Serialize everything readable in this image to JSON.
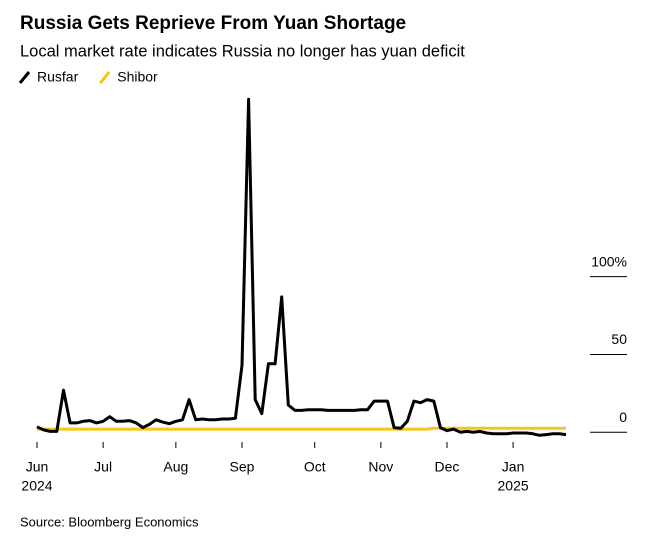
{
  "chart_data": {
    "type": "line",
    "title": "Russia Gets Reprieve From Yuan Shortage",
    "subtitle": "Local market rate indicates Russia no longer has yuan deficit",
    "source": "Source: Bloomberg Economics",
    "categories": [
      "Jun",
      null,
      null,
      null,
      null,
      null,
      null,
      null,
      null,
      null,
      "Jul",
      null,
      null,
      null,
      null,
      null,
      null,
      null,
      null,
      null,
      null,
      "Aug",
      null,
      null,
      null,
      null,
      null,
      null,
      null,
      null,
      null,
      "Sep",
      null,
      null,
      null,
      null,
      null,
      null,
      null,
      null,
      null,
      null,
      "Oct",
      null,
      null,
      null,
      null,
      null,
      null,
      null,
      null,
      null,
      "Nov",
      null,
      null,
      null,
      null,
      null,
      null,
      null,
      null,
      null,
      "Dec",
      null,
      null,
      null,
      null,
      null,
      null,
      null,
      null,
      null,
      "Jan",
      null,
      null,
      null,
      null,
      null,
      null,
      null,
      null
    ],
    "year_labels": [
      "2024",
      null,
      null,
      null,
      null,
      null,
      null,
      null,
      null,
      null,
      null,
      null,
      null,
      null,
      null,
      null,
      null,
      null,
      null,
      null,
      null,
      null,
      null,
      null,
      null,
      null,
      null,
      null,
      null,
      null,
      null,
      null,
      null,
      null,
      null,
      null,
      null,
      null,
      null,
      null,
      null,
      null,
      null,
      null,
      null,
      null,
      null,
      null,
      null,
      null,
      null,
      null,
      null,
      null,
      null,
      null,
      null,
      null,
      null,
      null,
      null,
      null,
      null,
      null,
      null,
      null,
      null,
      null,
      null,
      null,
      null,
      null,
      "2025",
      null,
      null,
      null,
      null,
      null,
      null,
      null,
      null
    ],
    "series": [
      {
        "name": "Rusfar",
        "color": "#000000",
        "values": [
          3.5,
          1.5,
          0.5,
          0.5,
          27,
          6,
          6,
          7,
          7.5,
          6,
          7,
          10,
          7,
          7,
          7.5,
          6,
          3,
          5,
          8,
          6.5,
          5.5,
          7,
          8,
          21,
          8,
          8.5,
          8,
          8,
          8.5,
          8.5,
          9,
          43,
          214,
          21,
          12,
          44,
          44,
          87,
          17.5,
          14,
          14,
          14.5,
          14.5,
          14.5,
          14,
          14,
          14,
          14,
          14,
          14.5,
          14.5,
          20,
          20,
          20,
          3,
          2.5,
          7,
          20,
          19,
          21,
          20,
          3,
          1,
          2,
          0,
          0.5,
          0,
          0.5,
          -0.5,
          -1,
          -1,
          -1,
          -0.5,
          -0.5,
          -0.5,
          -1,
          -2,
          -1.5,
          -1,
          -1,
          -1.5
        ]
      },
      {
        "name": "Shibor",
        "color": "#f5c518",
        "values": [
          2,
          2,
          2,
          2,
          2,
          2,
          2,
          2,
          2,
          2,
          2,
          2,
          2,
          2,
          2,
          2,
          2,
          2,
          2,
          2,
          2,
          2,
          2,
          2,
          2,
          2,
          2,
          2,
          2,
          2,
          2,
          2,
          2,
          2,
          2,
          2,
          2,
          2,
          2,
          2,
          2,
          2,
          2,
          2,
          2,
          2,
          2,
          2,
          2,
          2,
          2,
          2,
          2,
          2,
          2,
          2,
          2,
          2,
          2,
          2,
          2.5,
          2.5,
          2.5,
          2.5,
          2.5,
          2.5,
          2.5,
          2.5,
          2.5,
          2.5,
          2.5,
          2.5,
          2.5,
          2.5,
          2.5,
          2.5,
          2.5,
          2.5,
          2.5,
          2.5,
          2.5
        ]
      }
    ],
    "ylim": [
      -5,
      220
    ],
    "yticks": [
      0,
      50,
      {
        "value": 100,
        "label": "100%"
      }
    ]
  }
}
